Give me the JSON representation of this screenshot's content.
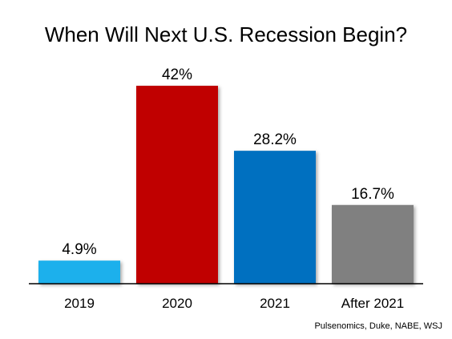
{
  "chart_data": {
    "type": "bar",
    "title": "When Will Next U.S. Recession Begin?",
    "xlabel": "",
    "ylabel": "",
    "categories": [
      "2019",
      "2020",
      "2021",
      "After 2021"
    ],
    "values": [
      4.9,
      42,
      28.2,
      16.7
    ],
    "value_labels": [
      "4.9%",
      "42%",
      "28.2%",
      "16.7%"
    ],
    "colors": [
      "#1ab0ec",
      "#c00000",
      "#0070c0",
      "#808080"
    ],
    "ylim": [
      0,
      42
    ],
    "grid": false,
    "legend": "none",
    "source": "Pulsenomics, Duke, NABE, WSJ"
  }
}
